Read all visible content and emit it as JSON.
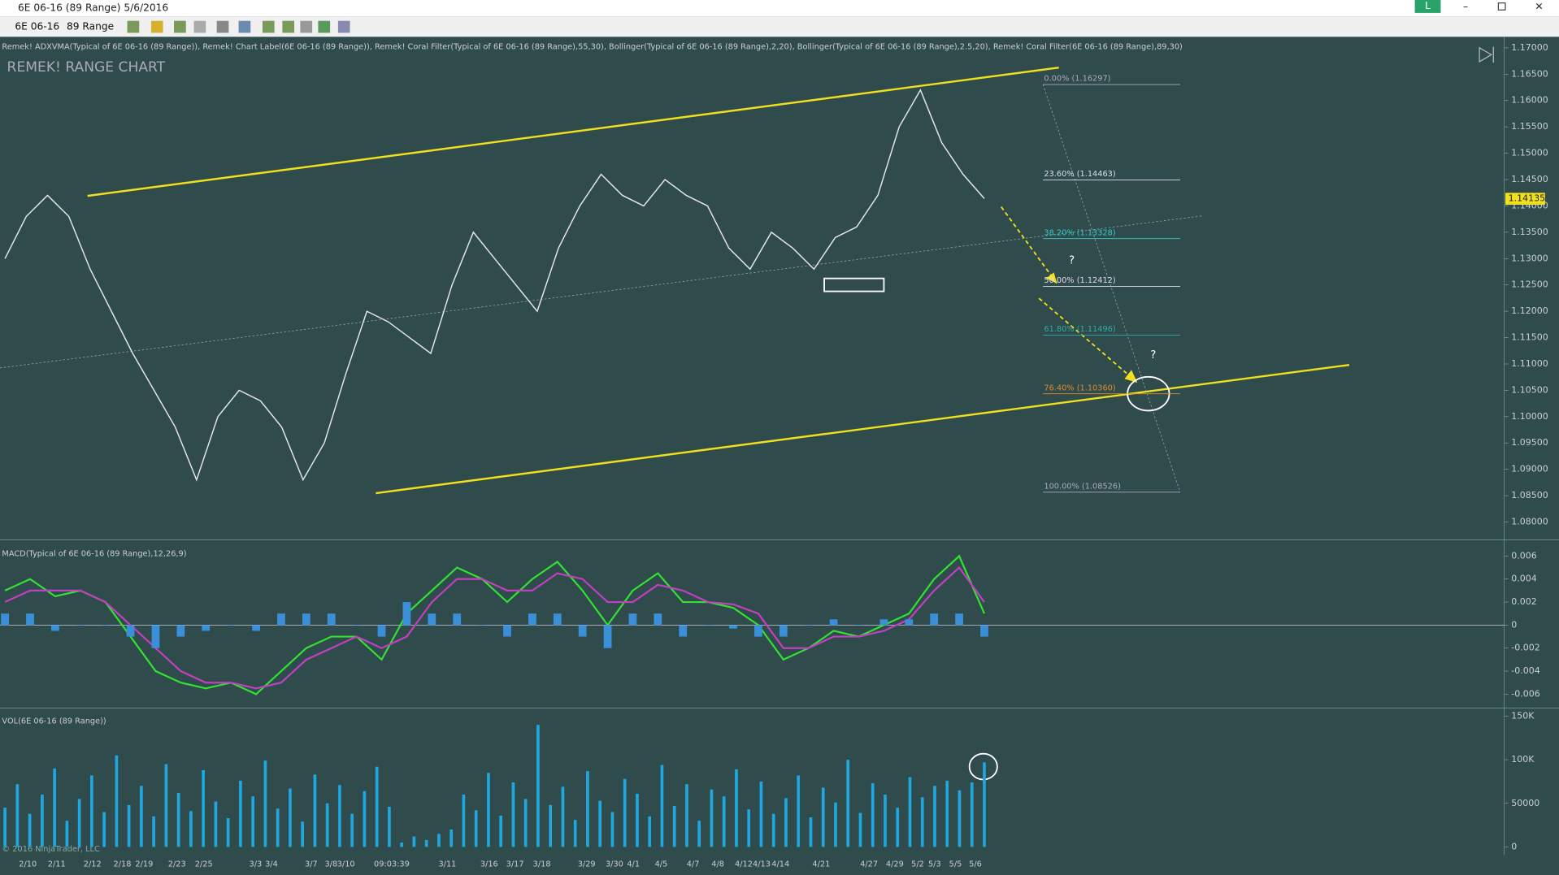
{
  "window": {
    "title": "6E 06-16 (89 Range)  5/6/2016",
    "badge": "L"
  },
  "toolbar": {
    "instrument": "6E 06-16",
    "period": "89 Range"
  },
  "indicators": "Remek! ADXVMA(Typical of 6E 06-16 (89 Range)), Remek! Chart Label(6E 06-16 (89 Range)), Remek! Coral Filter(Typical of 6E 06-16 (89 Range),55,30), Bollinger(Typical of 6E 06-16 (89 Range),2,20), Bollinger(Typical of 6E 06-16 (89 Range),2.5,20), Remek! Coral Filter(6E 06-16 (89 Range),89,30)",
  "chart_label": "REMEK! RANGE CHART",
  "copyright": "© 2016 NinjaTrader, LLC",
  "fib_labels": [
    "0.00% (1.16297)",
    "23.60% (1.14463)",
    "38.20% (1.13328)",
    "50.00% (1.12412)",
    "61.80% (1.11496)",
    "76.40% (1.10360)",
    "100.00% (1.08526)"
  ],
  "annotations": [
    "?",
    "?"
  ],
  "x_labels": [
    "2/10",
    "2/11",
    "2/12",
    "2/18",
    "2/19",
    "2/23",
    "2/25",
    "3/3",
    "3/4",
    "3/7",
    "3/8",
    "3/10",
    "09:03:39",
    "3/11",
    "3/16",
    "3/17",
    "3/18",
    "3/29",
    "3/30",
    "4/1",
    "4/5",
    "4/7",
    "4/8",
    "4/12",
    "4/13",
    "4/14",
    "4/21",
    "4/27",
    "4/29",
    "5/2",
    "5/3",
    "5/5",
    "5/6"
  ],
  "chart_data": [
    {
      "type": "line",
      "series": [
        {
          "color": "#e6e6e6",
          "values": [
            1.13,
            1.138,
            1.142,
            1.138,
            1.128,
            1.12,
            1.112,
            1.105,
            1.098,
            1.088,
            1.1,
            1.105,
            1.103,
            1.098,
            1.088,
            1.095,
            1.108,
            1.12,
            1.118,
            1.115,
            1.112,
            1.125,
            1.135,
            1.13,
            1.125,
            1.12,
            1.132,
            1.14,
            1.146,
            1.142,
            1.14,
            1.145,
            1.142,
            1.14,
            1.132,
            1.128,
            1.135,
            1.132,
            1.128,
            1.134,
            1.136,
            1.142,
            1.155,
            1.162,
            1.152,
            1.146,
            1.1414
          ]
        }
      ],
      "ylim": [
        1.0766,
        1.1721
      ],
      "yticks": [
        {
          "value": 1.08,
          "label": "1.08000"
        },
        {
          "value": 1.085,
          "label": "1.08500"
        },
        {
          "value": 1.09,
          "label": "1.09000"
        },
        {
          "value": 1.095,
          "label": "1.09500"
        },
        {
          "value": 1.1,
          "label": "1.10000"
        },
        {
          "value": 1.105,
          "label": "1.10500"
        },
        {
          "value": 1.11,
          "label": "1.11000"
        },
        {
          "value": 1.115,
          "label": "1.11500"
        },
        {
          "value": 1.12,
          "label": "1.12000"
        },
        {
          "value": 1.125,
          "label": "1.12500"
        },
        {
          "value": 1.13,
          "label": "1.13000"
        },
        {
          "value": 1.135,
          "label": "1.13500"
        },
        {
          "value": 1.14,
          "label": "1.14000"
        },
        {
          "value": 1.145,
          "label": "1.14500"
        },
        {
          "value": 1.15,
          "label": "1.15000"
        },
        {
          "value": 1.155,
          "label": "1.15500"
        },
        {
          "value": 1.16,
          "label": "1.16000"
        },
        {
          "value": 1.165,
          "label": "1.16500"
        },
        {
          "value": 1.17,
          "label": "1.17000"
        }
      ],
      "price_marker": {
        "value": 1.14135,
        "label": "1.14135"
      }
    },
    {
      "type": "line",
      "title": "MACD(Typical of 6E 06-16 (89 Range),12,26,9)",
      "series": [
        {
          "color": "#33e033",
          "values": [
            0.003,
            0.004,
            0.0025,
            0.003,
            0.002,
            -0.001,
            -0.004,
            -0.005,
            -0.0055,
            -0.005,
            -0.006,
            -0.004,
            -0.002,
            -0.001,
            -0.001,
            -0.003,
            0.001,
            0.003,
            0.005,
            0.004,
            0.002,
            0.004,
            0.0055,
            0.003,
            0.0,
            0.003,
            0.0045,
            0.002,
            0.002,
            0.0015,
            0.0,
            -0.003,
            -0.002,
            -0.0005,
            -0.001,
            0.0,
            0.001,
            0.004,
            0.006,
            0.001
          ]
        },
        {
          "color": "#c040c0",
          "values": [
            0.002,
            0.003,
            0.003,
            0.003,
            0.002,
            0.0,
            -0.002,
            -0.004,
            -0.005,
            -0.005,
            -0.0055,
            -0.005,
            -0.003,
            -0.002,
            -0.001,
            -0.002,
            -0.001,
            0.002,
            0.004,
            0.004,
            0.003,
            0.003,
            0.0045,
            0.004,
            0.002,
            0.002,
            0.0035,
            0.003,
            0.002,
            0.0018,
            0.001,
            -0.002,
            -0.002,
            -0.001,
            -0.001,
            -0.0005,
            0.0005,
            0.003,
            0.005,
            0.002
          ]
        },
        {
          "type": "bar",
          "color": "#3a8fd8",
          "values": [
            0.001,
            0.001,
            -0.0005,
            0,
            0,
            -0.001,
            -0.002,
            -0.001,
            -0.0005,
            0,
            -0.0005,
            0.001,
            0.001,
            0.001,
            0,
            -0.001,
            0.002,
            0.001,
            0.001,
            0,
            -0.001,
            0.001,
            0.001,
            -0.001,
            -0.002,
            0.001,
            0.001,
            -0.001,
            0,
            -0.0003,
            -0.001,
            -0.001,
            0,
            0.0005,
            0,
            0.0005,
            0.0005,
            0.001,
            0.001,
            -0.001
          ]
        }
      ],
      "ylim": [
        -0.0072,
        0.0074
      ],
      "yticks": [
        -0.006,
        -0.004,
        -0.002,
        0,
        0.002,
        0.004,
        0.006
      ]
    },
    {
      "type": "bar",
      "title": "VOL(6E 06-16 (89 Range))",
      "color": "#1ea7e0",
      "values": [
        45000,
        72000,
        38000,
        60000,
        90000,
        30000,
        55000,
        82000,
        40000,
        105000,
        48000,
        70000,
        35000,
        95000,
        62000,
        41000,
        88000,
        52000,
        33000,
        76000,
        58000,
        99000,
        44000,
        67000,
        29000,
        83000,
        50000,
        71000,
        38000,
        64000,
        92000,
        46000,
        5000,
        12000,
        8000,
        15000,
        20000,
        60000,
        42000,
        85000,
        36000,
        74000,
        55000,
        140000,
        48000,
        69000,
        31000,
        87000,
        53000,
        40000,
        78000,
        61000,
        35000,
        94000,
        47000,
        72000,
        30000,
        66000,
        58000,
        89000,
        43000,
        75000,
        38000,
        56000,
        82000,
        34000,
        68000,
        51000,
        100000,
        39000,
        73000,
        60000,
        45000,
        80000,
        57000,
        70000,
        76000,
        65000,
        74000,
        97000
      ],
      "ylim": [
        -9400,
        159400
      ],
      "yticks": [
        0,
        50000,
        {
          "value": 100000,
          "label": "100K"
        },
        {
          "value": 150000,
          "label": "150K"
        }
      ]
    }
  ]
}
